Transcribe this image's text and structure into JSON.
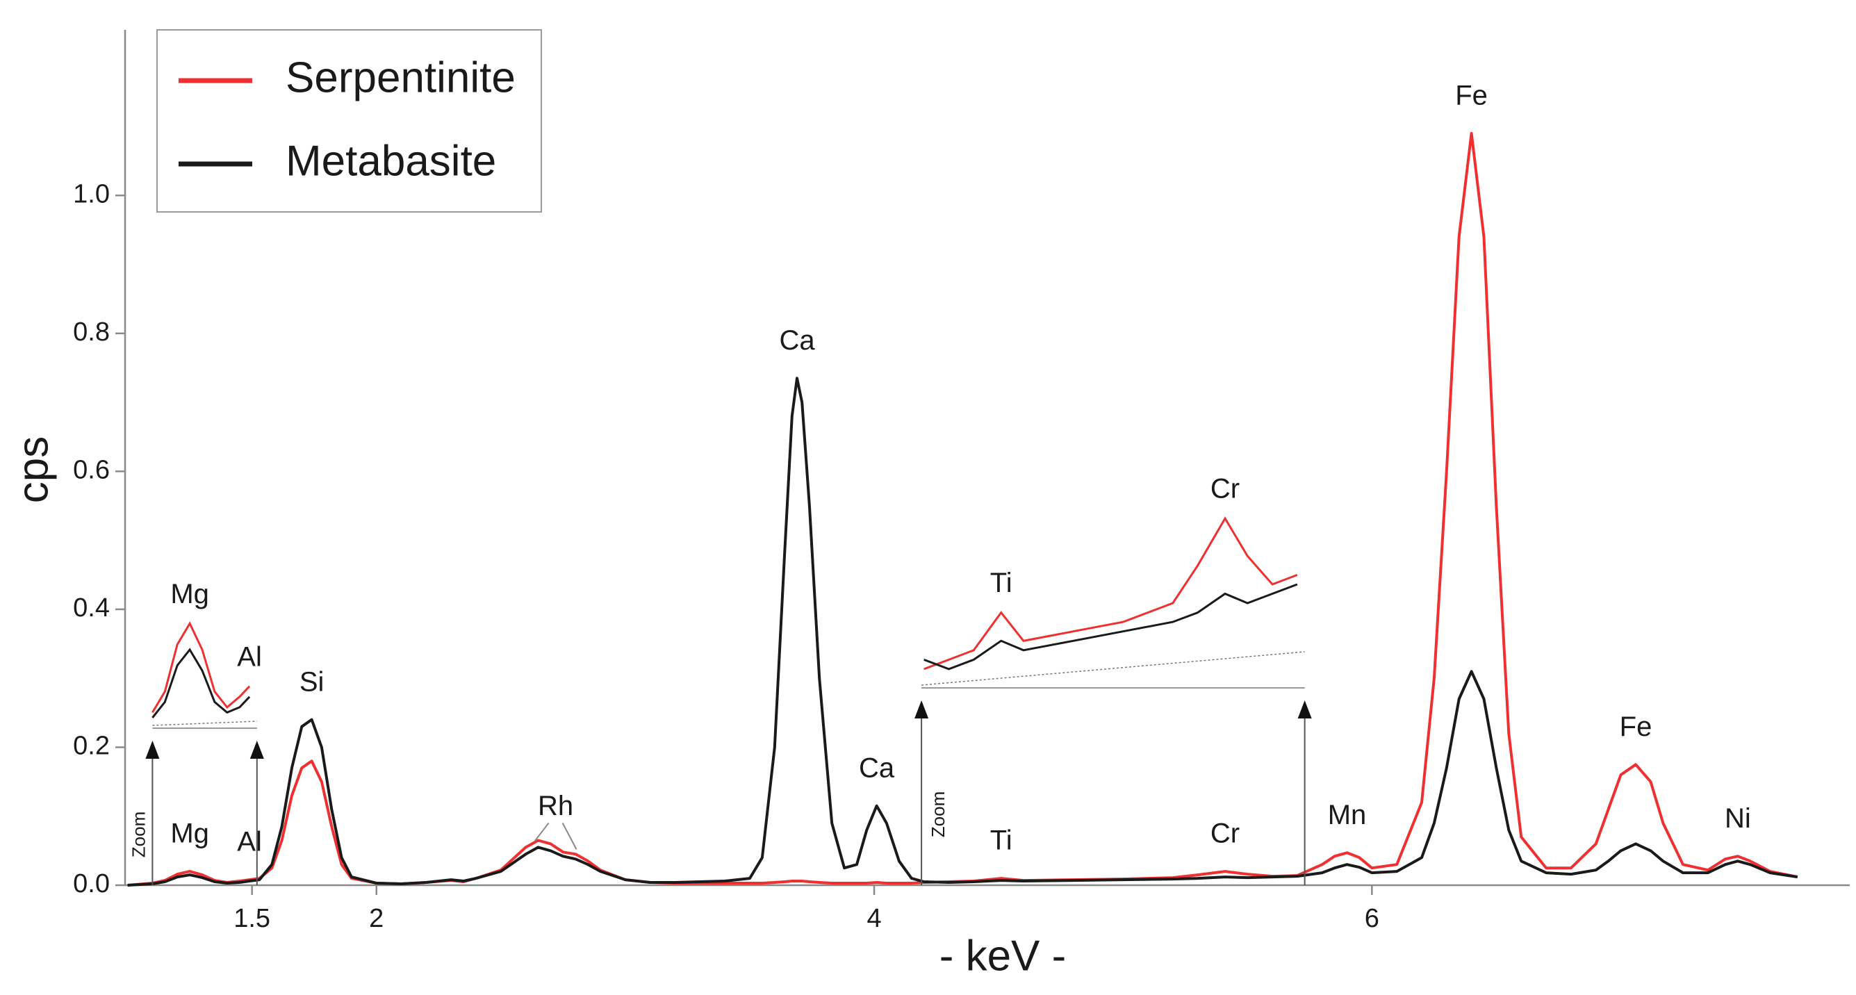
{
  "chart_data": {
    "type": "line",
    "xlabel": "- keV -",
    "ylabel": "cps",
    "xlim": [
      0.99,
      7.92
    ],
    "ylim": [
      0,
      1.24
    ],
    "xticks": [
      1.5,
      2,
      4,
      6
    ],
    "yticks": [
      {
        "value": 0,
        "label": "0.0"
      },
      0.2,
      0.4,
      0.6,
      0.8,
      {
        "value": 1,
        "label": "1.0"
      }
    ],
    "legend": "upper left",
    "x": [
      1.0,
      1.1,
      1.15,
      1.2,
      1.25,
      1.3,
      1.35,
      1.4,
      1.45,
      1.49,
      1.53,
      1.58,
      1.62,
      1.66,
      1.7,
      1.74,
      1.78,
      1.82,
      1.86,
      1.9,
      2.0,
      2.1,
      2.2,
      2.3,
      2.35,
      2.4,
      2.5,
      2.6,
      2.65,
      2.7,
      2.75,
      2.8,
      2.85,
      2.9,
      3.0,
      3.1,
      3.2,
      3.3,
      3.4,
      3.5,
      3.55,
      3.6,
      3.64,
      3.67,
      3.69,
      3.71,
      3.74,
      3.78,
      3.83,
      3.88,
      3.93,
      3.97,
      4.01,
      4.05,
      4.1,
      4.15,
      4.2,
      4.3,
      4.4,
      4.51,
      4.6,
      4.8,
      5.0,
      5.2,
      5.3,
      5.41,
      5.5,
      5.6,
      5.7,
      5.8,
      5.85,
      5.9,
      5.95,
      6.0,
      6.1,
      6.2,
      6.25,
      6.3,
      6.35,
      6.4,
      6.45,
      6.5,
      6.55,
      6.6,
      6.7,
      6.8,
      6.9,
      6.95,
      7.0,
      7.06,
      7.12,
      7.17,
      7.25,
      7.35,
      7.42,
      7.47,
      7.52,
      7.6,
      7.71
    ],
    "series": [
      {
        "name": "Serpentinite",
        "color": "#f03030",
        "values": [
          0.0,
          0.003,
          0.007,
          0.016,
          0.02,
          0.015,
          0.007,
          0.004,
          0.006,
          0.008,
          0.01,
          0.025,
          0.065,
          0.13,
          0.17,
          0.18,
          0.15,
          0.085,
          0.03,
          0.01,
          0.003,
          0.002,
          0.004,
          0.007,
          0.005,
          0.01,
          0.022,
          0.055,
          0.065,
          0.06,
          0.048,
          0.045,
          0.035,
          0.022,
          0.008,
          0.004,
          0.003,
          0.003,
          0.003,
          0.003,
          0.003,
          0.004,
          0.005,
          0.006,
          0.006,
          0.006,
          0.005,
          0.004,
          0.003,
          0.003,
          0.003,
          0.003,
          0.004,
          0.003,
          0.003,
          0.003,
          0.004,
          0.005,
          0.006,
          0.01,
          0.007,
          0.008,
          0.009,
          0.011,
          0.015,
          0.02,
          0.016,
          0.013,
          0.014,
          0.03,
          0.042,
          0.047,
          0.04,
          0.025,
          0.03,
          0.12,
          0.3,
          0.6,
          0.94,
          1.09,
          0.94,
          0.55,
          0.22,
          0.07,
          0.025,
          0.025,
          0.06,
          0.11,
          0.16,
          0.175,
          0.15,
          0.09,
          0.03,
          0.022,
          0.038,
          0.042,
          0.035,
          0.02,
          0.012
        ]
      },
      {
        "name": "Metabasite",
        "color": "#1a1a1a",
        "values": [
          0.0,
          0.002,
          0.005,
          0.012,
          0.015,
          0.011,
          0.005,
          0.003,
          0.004,
          0.006,
          0.008,
          0.03,
          0.085,
          0.17,
          0.23,
          0.24,
          0.2,
          0.11,
          0.04,
          0.012,
          0.003,
          0.002,
          0.004,
          0.008,
          0.006,
          0.01,
          0.02,
          0.045,
          0.055,
          0.05,
          0.042,
          0.038,
          0.03,
          0.02,
          0.008,
          0.004,
          0.004,
          0.005,
          0.006,
          0.01,
          0.04,
          0.2,
          0.48,
          0.68,
          0.735,
          0.7,
          0.55,
          0.3,
          0.09,
          0.025,
          0.03,
          0.08,
          0.115,
          0.09,
          0.035,
          0.01,
          0.005,
          0.004,
          0.005,
          0.007,
          0.006,
          0.007,
          0.008,
          0.009,
          0.01,
          0.012,
          0.011,
          0.012,
          0.013,
          0.018,
          0.025,
          0.03,
          0.026,
          0.018,
          0.02,
          0.04,
          0.09,
          0.17,
          0.27,
          0.31,
          0.27,
          0.17,
          0.08,
          0.035,
          0.018,
          0.016,
          0.022,
          0.035,
          0.05,
          0.06,
          0.05,
          0.035,
          0.018,
          0.018,
          0.03,
          0.035,
          0.03,
          0.018,
          0.012
        ]
      }
    ],
    "annotations": [
      {
        "text": "Mg",
        "x": 1.25
      },
      {
        "text": "Al",
        "x": 1.49
      },
      {
        "text": "Si",
        "x": 1.74
      },
      {
        "text": "Rh",
        "x": 2.72
      },
      {
        "text": "Ca",
        "x": 3.69
      },
      {
        "text": "Ca",
        "x": 4.01
      },
      {
        "text": "Ti",
        "x": 4.51
      },
      {
        "text": "Cr",
        "x": 5.41
      },
      {
        "text": "Mn",
        "x": 5.9
      },
      {
        "text": "Fe",
        "x": 6.4
      },
      {
        "text": "Fe",
        "x": 7.06
      },
      {
        "text": "Ni",
        "x": 7.47
      }
    ],
    "insets": [
      {
        "label": "Zoom",
        "xlim": [
          1.1,
          1.52
        ],
        "ylim": [
          0,
          0.03
        ],
        "annotations": [
          {
            "text": "Mg",
            "x": 1.25
          },
          {
            "text": "Al",
            "x": 1.49
          }
        ]
      },
      {
        "label": "Zoom",
        "xlim": [
          4.19,
          5.73
        ],
        "ylim": [
          0.002,
          0.022
        ],
        "annotations": [
          {
            "text": "Ti",
            "x": 4.51
          },
          {
            "text": "Cr",
            "x": 5.41
          }
        ]
      }
    ]
  }
}
